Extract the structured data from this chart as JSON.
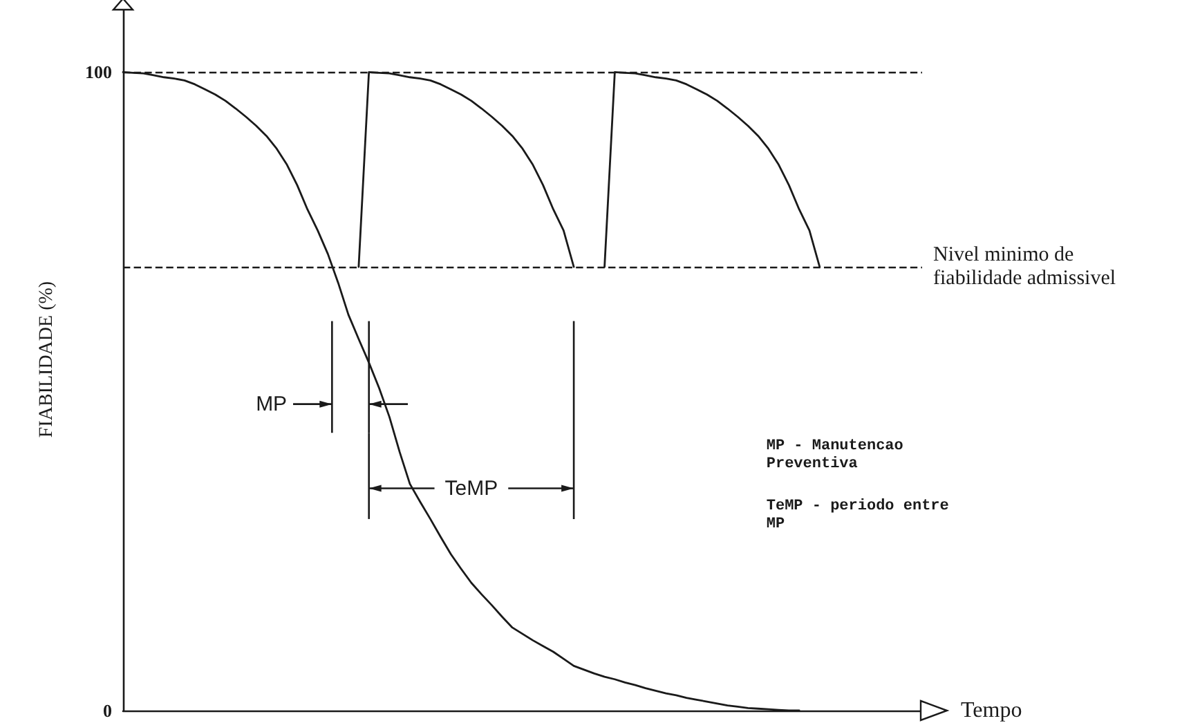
{
  "chart_data": {
    "type": "line",
    "xlabel": "Tempo",
    "ylabel": "FIABILIDADE (%)",
    "categories": [
      null,
      null,
      null,
      null,
      null,
      null,
      null,
      null,
      null,
      null,
      null,
      null,
      null,
      null,
      null,
      null,
      null,
      null,
      null,
      null,
      null,
      null,
      null,
      null,
      null,
      null,
      null,
      null,
      null,
      null,
      null,
      null,
      null,
      null,
      null,
      null,
      null,
      null,
      null,
      null,
      null,
      null,
      null,
      null,
      null,
      null,
      null,
      null,
      null,
      null,
      null,
      null,
      null,
      null,
      null,
      null,
      null,
      null,
      null,
      null,
      null,
      null,
      null,
      null,
      null,
      null,
      null,
      null,
      null,
      null,
      null,
      null,
      null,
      null,
      null,
      null,
      null,
      null,
      null
    ],
    "ylim": [
      0,
      110
    ],
    "yticks": [
      0,
      100
    ],
    "grid": false,
    "marker": "none",
    "line_style": "solid",
    "series": [
      {
        "color": "#1a1a1a",
        "values": [
          100,
          99.9,
          99.8,
          99.5,
          99.2,
          99,
          98.7,
          98.1,
          97.3,
          96.5,
          95.5,
          94.3,
          93,
          91.6,
          90,
          88,
          85.5,
          82.3,
          78.5,
          75.2,
          71.5,
          67,
          62,
          58.2,
          54.5,
          50.5,
          46,
          40.5,
          35.5,
          32.7,
          30,
          27.2,
          24.5,
          22.2,
          20,
          18.2,
          16.5,
          14.7,
          13,
          12,
          11,
          10.1,
          9.2,
          8.1,
          7,
          6.4,
          5.8,
          5.3,
          4.9,
          4.4,
          4,
          3.5,
          3.1,
          2.7,
          2.4,
          2,
          1.7,
          1.4,
          1.1,
          0.8,
          0.6,
          0.4,
          0.3,
          0.2,
          0.1,
          0,
          0,
          null,
          null,
          null,
          null,
          null,
          null,
          null,
          null,
          null,
          null,
          null,
          null
        ]
      },
      {
        "color": "#1a1a1a",
        "values": [
          null,
          null,
          null,
          null,
          null,
          null,
          null,
          null,
          null,
          null,
          null,
          null,
          null,
          null,
          null,
          null,
          null,
          null,
          null,
          null,
          null,
          null,
          null,
          69.5,
          100,
          99.9,
          99.8,
          99.5,
          99.2,
          99,
          98.7,
          98.1,
          97.3,
          96.5,
          95.5,
          94.3,
          93,
          91.6,
          90,
          88,
          85.5,
          82.3,
          78.5,
          75.2,
          69.5,
          null,
          null,
          null,
          null,
          null,
          null,
          null,
          null,
          null,
          null,
          null,
          null,
          null,
          null,
          null,
          null,
          null,
          null,
          null,
          null,
          null,
          null,
          null,
          null,
          null,
          null,
          null,
          null,
          null,
          null,
          null,
          null,
          null,
          null
        ]
      },
      {
        "color": "#1a1a1a",
        "values": [
          null,
          null,
          null,
          null,
          null,
          null,
          null,
          null,
          null,
          null,
          null,
          null,
          null,
          null,
          null,
          null,
          null,
          null,
          null,
          null,
          null,
          null,
          null,
          null,
          null,
          null,
          null,
          null,
          null,
          null,
          null,
          null,
          null,
          null,
          null,
          null,
          null,
          null,
          null,
          null,
          null,
          null,
          null,
          null,
          null,
          null,
          null,
          69.5,
          100,
          99.9,
          99.8,
          99.5,
          99.2,
          99,
          98.7,
          98.1,
          97.3,
          96.5,
          95.5,
          94.3,
          93,
          91.6,
          90,
          88,
          85.5,
          82.3,
          78.5,
          75.2,
          69.5,
          null,
          null,
          null,
          null,
          null,
          null,
          null,
          null,
          null,
          null
        ]
      }
    ],
    "ref_lines": [
      {
        "axis": "y",
        "value": 100,
        "label": null,
        "color": "#1a1a1a",
        "line_style": "dashed"
      },
      {
        "axis": "y",
        "value": 69.5,
        "label": "Nivel minimo de fiabilidade admissivel",
        "color": "#1a1a1a",
        "line_style": "dashed"
      }
    ],
    "annotations": [
      "MP",
      "TeMP",
      "MP - Manutencao Preventiva",
      "TeMP - periodo entre MP"
    ]
  }
}
